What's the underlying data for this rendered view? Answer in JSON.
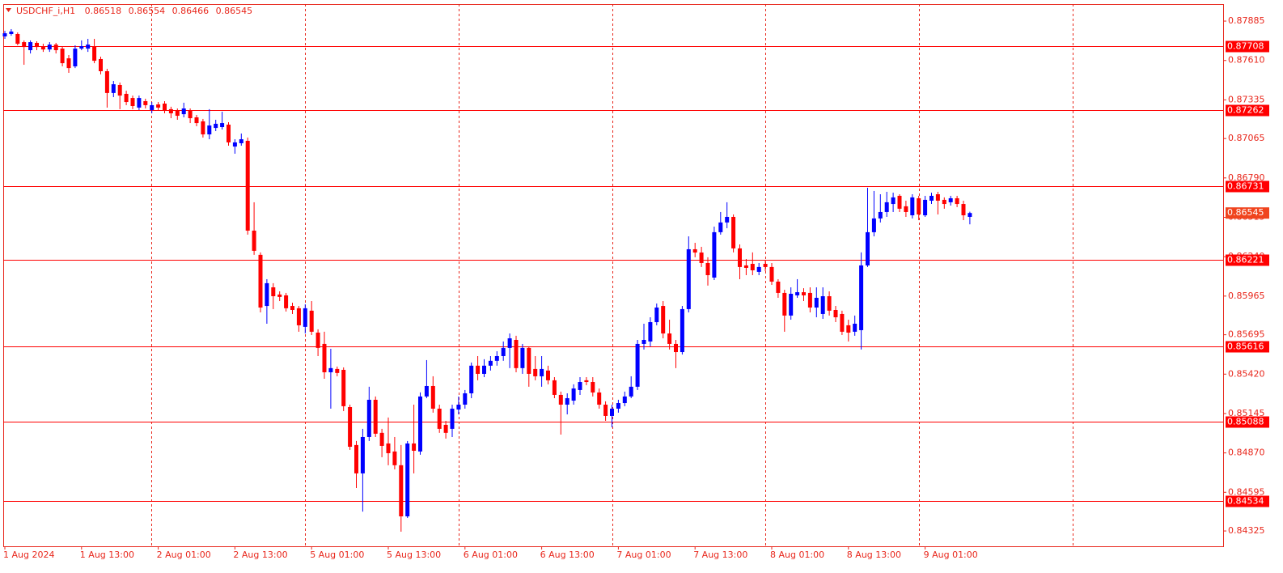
{
  "chart_data": {
    "type": "candlestick",
    "symbol": "USDCHF_i,H1",
    "up_color": "#0000ff",
    "down_color": "#ff0000",
    "level_color": "#ff0000",
    "categories": [
      "1 Aug 2024",
      null,
      null,
      null,
      null,
      null,
      null,
      null,
      null,
      null,
      null,
      null,
      "1 Aug 13:00",
      null,
      null,
      null,
      null,
      null,
      null,
      null,
      null,
      null,
      null,
      null,
      "2 Aug 01:00",
      null,
      null,
      null,
      null,
      null,
      null,
      null,
      null,
      null,
      null,
      null,
      "2 Aug 13:00",
      null,
      null,
      null,
      null,
      null,
      null,
      null,
      null,
      null,
      null,
      null,
      "5 Aug 01:00",
      null,
      null,
      null,
      null,
      null,
      null,
      null,
      null,
      null,
      null,
      null,
      "5 Aug 13:00",
      null,
      null,
      null,
      null,
      null,
      null,
      null,
      null,
      null,
      null,
      null,
      "6 Aug 01:00",
      null,
      null,
      null,
      null,
      null,
      null,
      null,
      null,
      null,
      null,
      null,
      "6 Aug 13:00",
      null,
      null,
      null,
      null,
      null,
      null,
      null,
      null,
      null,
      null,
      null,
      "7 Aug 01:00",
      null,
      null,
      null,
      null,
      null,
      null,
      null,
      null,
      null,
      null,
      null,
      "7 Aug 13:00",
      null,
      null,
      null,
      null,
      null,
      null,
      null,
      null,
      null,
      null,
      null,
      "8 Aug 01:00",
      null,
      null,
      null,
      null,
      null,
      null,
      null,
      null,
      null,
      null,
      null,
      "8 Aug 13:00",
      null,
      null,
      null,
      null,
      null,
      null,
      null,
      null,
      null,
      null,
      null,
      "9 Aug 01:00",
      null,
      null,
      null,
      null,
      null,
      null,
      null
    ],
    "open": [
      0.87778,
      0.87795,
      0.87795,
      0.87738,
      0.87682,
      0.87733,
      0.8771,
      0.87687,
      0.87721,
      0.87693,
      0.87625,
      0.87569,
      0.87693,
      0.87693,
      0.8771,
      0.8762,
      0.87535,
      0.87383,
      0.87439,
      0.87377,
      0.87348,
      0.87281,
      0.87326,
      0.87264,
      0.87303,
      0.87309,
      0.8727,
      0.87258,
      0.87235,
      0.87258,
      0.87213,
      0.87185,
      0.87094,
      0.87139,
      0.87145,
      0.87162,
      0.87009,
      0.87032,
      0.87049,
      0.86422,
      0.86253,
      0.85896,
      0.86026,
      0.85976,
      0.8597,
      0.85896,
      0.8588,
      0.8575,
      0.85863,
      0.8571,
      0.85631,
      0.85433,
      0.85456,
      0.8545,
      0.8519,
      0.84925,
      0.84727,
      0.84981,
      0.85241,
      0.8501,
      0.84936,
      0.8488,
      0.84784,
      0.84427,
      0.84936,
      0.8488,
      0.85264,
      0.85337,
      0.85179,
      0.85066,
      0.85038,
      0.85173,
      0.85207,
      0.85286,
      0.85479,
      0.85422,
      0.85479,
      0.85513,
      0.85546,
      0.85603,
      0.85659,
      0.85462,
      0.85603,
      0.85456,
      0.85405,
      0.85445,
      0.85377,
      0.85275,
      0.85207,
      0.85235,
      0.85309,
      0.85377,
      0.85365,
      0.85292,
      0.85207,
      0.85128,
      0.85179,
      0.85218,
      0.85264,
      0.85332,
      0.85631,
      0.85648,
      0.85783,
      0.85896,
      0.85704,
      0.85631,
      0.85574,
      0.85874,
      0.86292,
      0.86269,
      0.86196,
      0.86094,
      0.86411,
      0.86479,
      0.86518,
      0.86298,
      0.86179,
      0.8619,
      0.86134,
      0.8619,
      0.86168,
      0.86066,
      0.85987,
      0.85829,
      0.8597,
      0.85992,
      0.85987,
      0.85885,
      0.8584,
      0.85964,
      0.85868,
      0.8584,
      0.85761,
      0.85716,
      0.85727,
      0.86179,
      0.86411,
      0.86507,
      0.86552,
      0.86608,
      0.86665,
      0.86592,
      0.86529,
      0.86648,
      0.86529,
      0.86631,
      0.86676,
      0.86637,
      0.8662,
      0.86648,
      0.86608,
      0.86518
    ],
    "high": [
      0.87817,
      0.87829,
      0.87806,
      0.8775,
      0.8775,
      0.87744,
      0.87727,
      0.87738,
      0.87733,
      0.8771,
      0.87648,
      0.87716,
      0.8775,
      0.87761,
      0.87761,
      0.87637,
      0.87552,
      0.87467,
      0.87456,
      0.87399,
      0.87365,
      0.87365,
      0.87343,
      0.8732,
      0.8732,
      0.87326,
      0.87287,
      0.87275,
      0.87315,
      0.87275,
      0.8723,
      0.87202,
      0.8727,
      0.87196,
      0.87252,
      0.87179,
      0.8706,
      0.871,
      0.87072,
      0.8662,
      0.8627,
      0.86083,
      0.86055,
      0.85998,
      0.85987,
      0.85919,
      0.85896,
      0.85908,
      0.8593,
      0.85733,
      0.85716,
      0.85597,
      0.85473,
      0.85467,
      0.85207,
      0.84953,
      0.85038,
      0.85332,
      0.85264,
      0.85038,
      0.85117,
      0.84981,
      0.84925,
      0.84953,
      0.85207,
      0.85292,
      0.85518,
      0.85405,
      0.85207,
      0.85094,
      0.85207,
      0.85264,
      0.85309,
      0.85501,
      0.85546,
      0.85524,
      0.85546,
      0.8558,
      0.85648,
      0.85704,
      0.85688,
      0.85631,
      0.85614,
      0.85546,
      0.85546,
      0.85479,
      0.85399,
      0.85298,
      0.85286,
      0.85349,
      0.85399,
      0.85399,
      0.85399,
      0.8532,
      0.8523,
      0.85207,
      0.85241,
      0.85298,
      0.85405,
      0.85659,
      0.85772,
      0.85817,
      0.85913,
      0.8593,
      0.858,
      0.85659,
      0.85896,
      0.86382,
      0.86337,
      0.86309,
      0.86236,
      0.8645,
      0.86552,
      0.8662,
      0.86535,
      0.86326,
      0.86224,
      0.8627,
      0.86196,
      0.86213,
      0.86196,
      0.86083,
      0.86009,
      0.86026,
      0.86083,
      0.8602,
      0.86026,
      0.86026,
      0.86026,
      0.85998,
      0.85896,
      0.85863,
      0.858,
      0.85829,
      0.8627,
      0.86721,
      0.86699,
      0.86676,
      0.86693,
      0.86687,
      0.86676,
      0.86631,
      0.86676,
      0.86665,
      0.86665,
      0.86687,
      0.86693,
      0.86654,
      0.86665,
      0.86665,
      0.86631,
      0.86554
    ],
    "low": [
      0.87761,
      0.87783,
      0.87716,
      0.8758,
      0.87659,
      0.87682,
      0.8767,
      0.8767,
      0.87659,
      0.87569,
      0.87524,
      0.87557,
      0.87682,
      0.8767,
      0.87591,
      0.87513,
      0.87281,
      0.87354,
      0.8727,
      0.87298,
      0.8727,
      0.87264,
      0.87275,
      0.87241,
      0.87264,
      0.87241,
      0.87207,
      0.87196,
      0.87213,
      0.87173,
      0.87151,
      0.87072,
      0.8706,
      0.87117,
      0.87128,
      0.87015,
      0.86959,
      0.87015,
      0.86394,
      0.86253,
      0.85851,
      0.85772,
      0.85874,
      0.8593,
      0.85857,
      0.8584,
      0.85716,
      0.85704,
      0.85693,
      0.85546,
      0.85388,
      0.85179,
      0.85405,
      0.85162,
      0.84891,
      0.84625,
      0.8446,
      0.84953,
      0.84981,
      0.8484,
      0.84784,
      0.84755,
      0.8432,
      0.84416,
      0.84727,
      0.84857,
      0.85252,
      0.85151,
      0.8501,
      0.8497,
      0.84981,
      0.85139,
      0.85179,
      0.85252,
      0.85377,
      0.85399,
      0.85445,
      0.85479,
      0.85513,
      0.85462,
      0.85433,
      0.85422,
      0.85332,
      0.85377,
      0.85332,
      0.85349,
      0.85252,
      0.84998,
      0.85139,
      0.85207,
      0.85275,
      0.85343,
      0.85264,
      0.85179,
      0.85094,
      0.85049,
      0.85151,
      0.85196,
      0.85252,
      0.85309,
      0.85592,
      0.85614,
      0.85761,
      0.8567,
      0.85592,
      0.85462,
      0.85557,
      0.85851,
      0.86236,
      0.86168,
      0.86038,
      0.86077,
      0.86394,
      0.86439,
      0.8627,
      0.86083,
      0.86111,
      0.86111,
      0.86111,
      0.86139,
      0.86043,
      0.85953,
      0.85716,
      0.858,
      0.85953,
      0.8593,
      0.85851,
      0.85817,
      0.85806,
      0.85829,
      0.85783,
      0.85693,
      0.85648,
      0.85688,
      0.85592,
      0.86168,
      0.86382,
      0.86479,
      0.86518,
      0.86552,
      0.86552,
      0.86518,
      0.86507,
      0.86495,
      0.86518,
      0.86608,
      0.86535,
      0.86575,
      0.86597,
      0.86586,
      0.86495,
      0.86466
    ],
    "close": [
      0.878,
      0.87812,
      0.87727,
      0.87704,
      0.87738,
      0.87704,
      0.87687,
      0.87721,
      0.87682,
      0.87591,
      0.87557,
      0.87693,
      0.8771,
      0.87721,
      0.87608,
      0.87535,
      0.87383,
      0.87444,
      0.87365,
      0.8732,
      0.87292,
      0.87348,
      0.87298,
      0.87298,
      0.87281,
      0.87258,
      0.87241,
      0.87224,
      0.87275,
      0.87207,
      0.87173,
      0.87094,
      0.87156,
      0.87168,
      0.87173,
      0.87038,
      0.87038,
      0.8706,
      0.86422,
      0.86281,
      0.85885,
      0.86055,
      0.85964,
      0.85959,
      0.8588,
      0.85868,
      0.85761,
      0.8588,
      0.85716,
      0.85603,
      0.85433,
      0.85462,
      0.85428,
      0.85196,
      0.84913,
      0.84727,
      0.84981,
      0.85241,
      0.85004,
      0.84919,
      0.84868,
      0.84784,
      0.84427,
      0.84936,
      0.84885,
      0.85264,
      0.85337,
      0.85179,
      0.85038,
      0.8501,
      0.85179,
      0.85207,
      0.85286,
      0.85479,
      0.85422,
      0.85479,
      0.85513,
      0.85546,
      0.85603,
      0.8567,
      0.85462,
      0.85603,
      0.85422,
      0.85405,
      0.85456,
      0.85377,
      0.85275,
      0.85207,
      0.85252,
      0.8532,
      0.85365,
      0.85365,
      0.85292,
      0.85207,
      0.85128,
      0.85179,
      0.85218,
      0.85264,
      0.85332,
      0.85631,
      0.85659,
      0.85783,
      0.85885,
      0.85704,
      0.85631,
      0.85574,
      0.85874,
      0.86292,
      0.86269,
      0.86196,
      0.86111,
      0.86411,
      0.86479,
      0.86518,
      0.86298,
      0.86168,
      0.86162,
      0.86145,
      0.86168,
      0.86168,
      0.86066,
      0.85987,
      0.85829,
      0.85981,
      0.85992,
      0.8597,
      0.85885,
      0.85953,
      0.85964,
      0.85863,
      0.85817,
      0.85716,
      0.8571,
      0.85772,
      0.86179,
      0.86411,
      0.86507,
      0.86552,
      0.8662,
      0.86654,
      0.86575,
      0.86552,
      0.86654,
      0.86535,
      0.86637,
      0.86665,
      0.86631,
      0.86608,
      0.86648,
      0.86608,
      0.86529,
      0.86545
    ],
    "levels": [
      0.87708,
      0.87262,
      0.86731,
      0.86221,
      0.85616,
      0.85088,
      0.84534
    ],
    "ylim": [
      0.84218,
      0.88004
    ],
    "yticks": [
      0.87885,
      {
        "value": 0.8761,
        "label": "0.87610"
      },
      0.87335,
      0.87065,
      {
        "value": 0.8679,
        "label": "0.86790"
      },
      0.86515,
      {
        "value": 0.8624,
        "label": "0.86240"
      },
      0.85965,
      0.85695,
      {
        "value": 0.8542,
        "label": "0.85420"
      },
      0.85145,
      {
        "value": 0.8487,
        "label": "0.84870"
      },
      0.84595,
      0.84325
    ]
  }
}
